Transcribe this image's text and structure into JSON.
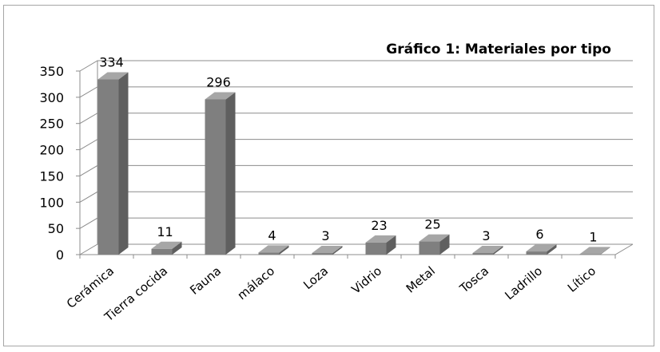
{
  "chart_data": {
    "type": "bar",
    "title": "Gráfico 1: Materiales por tipo",
    "categories": [
      "Cerámica",
      "Tierra cocida",
      "Fauna",
      "málaco",
      "Loza",
      "Vidrio",
      "Metal",
      "Tosca",
      "Ladrillo",
      "Lítico"
    ],
    "values": [
      334,
      11,
      296,
      4,
      3,
      23,
      25,
      3,
      6,
      1
    ],
    "ylim": [
      0,
      350
    ],
    "yticks": [
      0,
      50,
      100,
      150,
      200,
      250,
      300,
      350
    ],
    "grid": true,
    "legend": "none",
    "style": "3d-column",
    "colors": {
      "bar_front": "#7f7f7f",
      "bar_side": "#5f5f5f",
      "bar_top": "#a6a6a6",
      "grid": "#8c8c8c"
    }
  }
}
